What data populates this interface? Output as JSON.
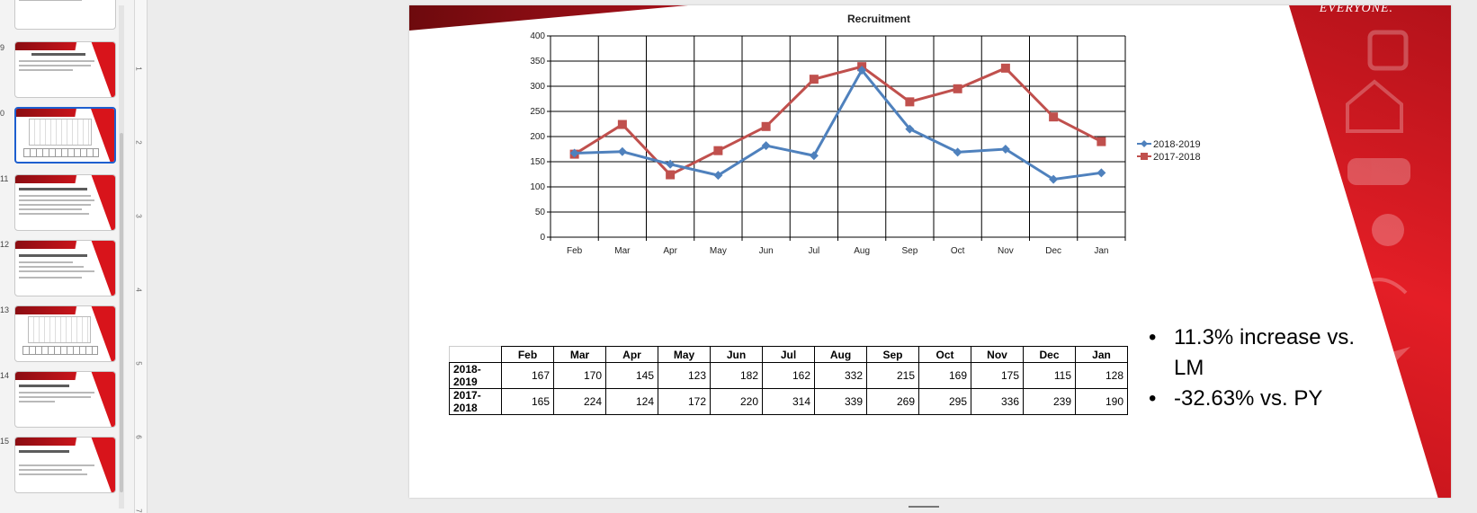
{
  "thumbnails": {
    "slide_numbers": [
      "9",
      "0",
      "11",
      "12",
      "13",
      "14",
      "15"
    ],
    "selected_index": 2
  },
  "ruler": {
    "marks": [
      "1",
      "2",
      "3",
      "4",
      "5",
      "6",
      "7"
    ]
  },
  "slide": {
    "brand_text": "EVERYONE."
  },
  "chart_data": {
    "type": "line",
    "title": "Recruitment",
    "categories": [
      "Feb",
      "Mar",
      "Apr",
      "May",
      "Jun",
      "Jul",
      "Aug",
      "Sep",
      "Oct",
      "Nov",
      "Dec",
      "Jan"
    ],
    "series": [
      {
        "name": "2018-2019",
        "values": [
          167,
          170,
          145,
          123,
          182,
          162,
          332,
          215,
          169,
          175,
          115,
          128
        ],
        "color": "#4f81bd",
        "marker": "diamond"
      },
      {
        "name": "2017-2018",
        "values": [
          165,
          224,
          124,
          172,
          220,
          314,
          339,
          269,
          295,
          336,
          239,
          190
        ],
        "color": "#c0504d",
        "marker": "square"
      }
    ],
    "ylim": [
      0,
      400
    ],
    "yticks": [
      0,
      50,
      100,
      150,
      200,
      250,
      300,
      350,
      400
    ],
    "grid": true,
    "legend": "right"
  },
  "table": {
    "headers": [
      "Feb",
      "Mar",
      "Apr",
      "May",
      "Jun",
      "Jul",
      "Aug",
      "Sep",
      "Oct",
      "Nov",
      "Dec",
      "Jan"
    ],
    "rows": [
      {
        "label": "2018-2019",
        "values": [
          "167",
          "170",
          "145",
          "123",
          "182",
          "162",
          "332",
          "215",
          "169",
          "175",
          "115",
          "128"
        ]
      },
      {
        "label": "2017-2018",
        "values": [
          "165",
          "224",
          "124",
          "172",
          "220",
          "314",
          "339",
          "269",
          "295",
          "336",
          "239",
          "190"
        ]
      }
    ]
  },
  "bullets": [
    {
      "dot": "•",
      "text": "11.3% increase vs. LM"
    },
    {
      "dot": "•",
      "text": "-32.63% vs. PY"
    }
  ]
}
